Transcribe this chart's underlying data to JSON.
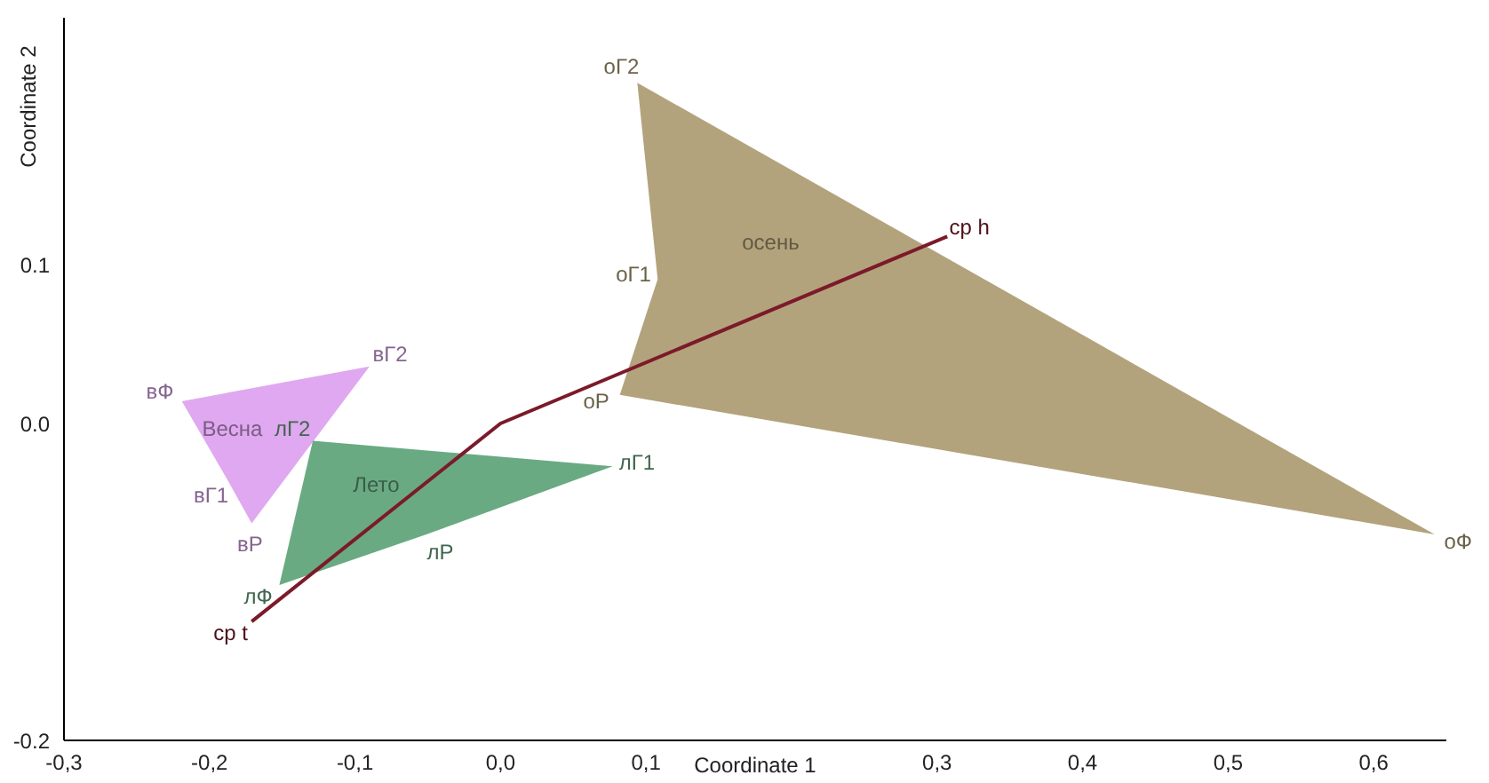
{
  "chart_data": {
    "type": "area",
    "xlabel": "Coordinate 1",
    "ylabel": "Coordinate 2",
    "xlim": [
      -0.3,
      0.65
    ],
    "ylim": [
      -0.2,
      0.256
    ],
    "xticks": [
      {
        "value": -0.3,
        "label": "-0,3"
      },
      {
        "value": -0.2,
        "label": "-0,2"
      },
      {
        "value": -0.1,
        "label": "-0,1"
      },
      {
        "value": 0,
        "label": "0,0"
      },
      {
        "value": 0.1,
        "label": "0,1"
      },
      {
        "value": 0.3,
        "label": "0,3"
      },
      {
        "value": 0.4,
        "label": "0,4"
      },
      {
        "value": 0.5,
        "label": "0,5"
      },
      {
        "value": 0.6,
        "label": "0,6"
      }
    ],
    "yticks": [
      -0.2,
      {
        "value": 0,
        "label": "0.0"
      },
      0.1
    ],
    "series": [
      {
        "name": "Весна",
        "color": "#e0a8f0",
        "x": [
          -0.219,
          -0.09,
          -0.171,
          -0.188
        ],
        "values": [
          0.014,
          0.036,
          -0.063,
          -0.035
        ]
      },
      {
        "name": "Лето",
        "color": "#6aaa82",
        "x": [
          -0.129,
          0.077,
          -0.051,
          -0.152
        ],
        "values": [
          -0.011,
          -0.027,
          -0.07,
          -0.102
        ]
      },
      {
        "name": "осень",
        "color": "#b3a37c",
        "x": [
          0.094,
          0.642,
          0.082,
          0.108
        ],
        "values": [
          0.215,
          -0.07,
          0.018,
          0.091
        ]
      },
      {
        "type": "line",
        "color": "#7b1a2a",
        "x": [
          -0.171,
          0,
          0.307
        ],
        "values": [
          -0.125,
          0,
          0.118
        ]
      }
    ],
    "annotations": [
      {
        "text": "вФ",
        "x": -0.219,
        "y": 0.014
      },
      {
        "text": "вГ2",
        "x": -0.09,
        "y": 0.036
      },
      {
        "text": "вГ1",
        "x": -0.188,
        "y": -0.035
      },
      {
        "text": "вР",
        "x": -0.171,
        "y": -0.063
      },
      {
        "text": "лГ2",
        "x": -0.129,
        "y": -0.011
      },
      {
        "text": "лГ1",
        "x": 0.077,
        "y": -0.027
      },
      {
        "text": "лР",
        "x": -0.051,
        "y": -0.07
      },
      {
        "text": "лФ",
        "x": -0.152,
        "y": -0.102
      },
      {
        "text": "оГ2",
        "x": 0.094,
        "y": 0.215
      },
      {
        "text": "оГ1",
        "x": 0.108,
        "y": 0.091
      },
      {
        "text": "оР",
        "x": 0.082,
        "y": 0.018
      },
      {
        "text": "оФ",
        "x": 0.642,
        "y": -0.07
      },
      {
        "text": "ср t",
        "x": -0.171,
        "y": -0.125
      },
      {
        "text": "ср h",
        "x": 0.307,
        "y": 0.118
      }
    ]
  }
}
